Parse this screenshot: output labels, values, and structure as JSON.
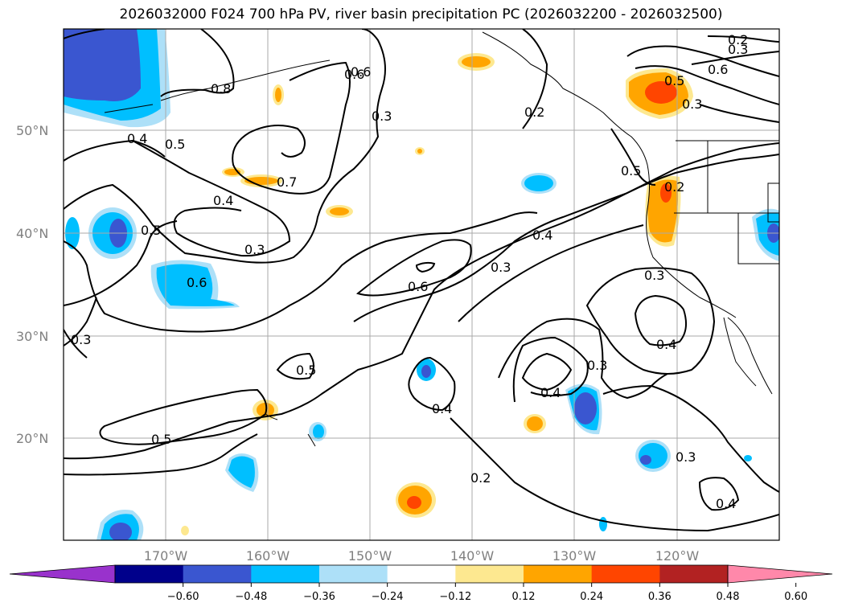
{
  "title": "2026032000 F024 700 hPa PV, river basin precipitation PC (2026032200 - 2026032500)",
  "lat_labels": [
    "50°N",
    "40°N",
    "30°N",
    "20°N"
  ],
  "lon_labels": [
    "170°W",
    "160°W",
    "150°W",
    "140°W",
    "130°W",
    "120°W"
  ],
  "contour_labels": [
    "0.2",
    "0.3",
    "0.6",
    "0.8",
    "0.6",
    "0.3",
    "0.2",
    "0.5",
    "0.6",
    "0.3",
    "0.4",
    "0.5",
    "0.7",
    "0.4",
    "0.3",
    "0.5",
    "0.6",
    "0.6",
    "0.3",
    "0.4",
    "0.2",
    "0.5",
    "0.3",
    "0.4",
    "0.5",
    "0.4",
    "0.3",
    "0.4",
    "0.5",
    "0.2",
    "0.3",
    "0.4",
    "0.3"
  ],
  "colorbar": {
    "colors": [
      "#9932cc",
      "#00008b",
      "#3a56d0",
      "#00bfff",
      "#ade0f8",
      "#ffffff",
      "#fde890",
      "#ffa500",
      "#ff4500",
      "#b22222",
      "#ff88aa"
    ],
    "ticks": [
      "−0.60",
      "−0.48",
      "−0.36",
      "−0.24",
      "−0.12",
      "0.12",
      "0.24",
      "0.36",
      "0.48",
      "0.60"
    ]
  }
}
